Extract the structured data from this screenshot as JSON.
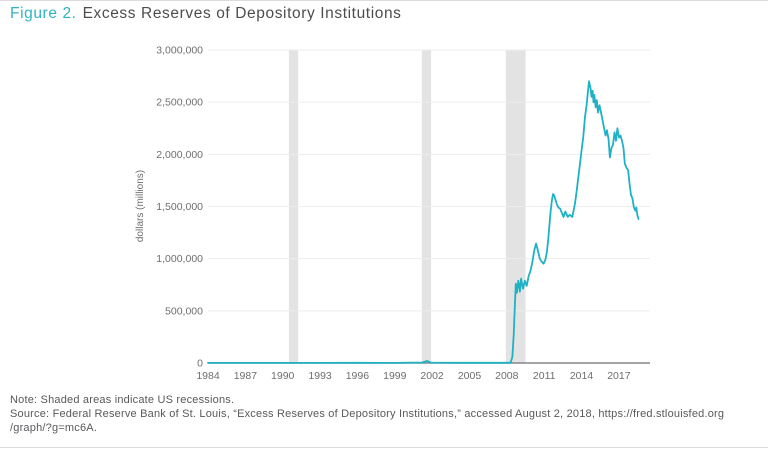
{
  "header": {
    "figure_label": "Figure 2.",
    "title": "Excess Reserves of Depository Institutions"
  },
  "notes": {
    "note": "Note: Shaded areas indicate US recessions.",
    "source_line1": "Source: Federal Reserve Bank of St. Louis, “Excess Reserves of Depository Institutions,” accessed August 2, 2018, https://fred.stlouisfed.org",
    "source_line2": "/graph/?g=mc6A."
  },
  "colors": {
    "accent_teal": "#2fb3c4",
    "line": "#1fb1c4",
    "title_text": "#4d4d4f",
    "tick_text": "#6d6e71",
    "note_text": "#58595b",
    "gridline": "#ededee",
    "recession_band": "#e3e3e4",
    "axis_line": "#85868a",
    "page_divider": "#dcdcdc"
  },
  "chart_data": {
    "type": "line",
    "title": "Excess Reserves of Depository Institutions",
    "xlabel": "",
    "ylabel": "dollars (millions)",
    "ylim": [
      0,
      3000000
    ],
    "xlim": [
      1984,
      2019.5
    ],
    "grid": "horizontal",
    "legend": "none",
    "line_color": "#1fb1c4",
    "grid_color": "#ededee",
    "band_color": "#e3e3e4",
    "axis_color": "#85868a",
    "yticks": [
      {
        "value": 0,
        "label": "0"
      },
      {
        "value": 500000,
        "label": "500,000"
      },
      {
        "value": 1000000,
        "label": "1,000,000"
      },
      {
        "value": 1500000,
        "label": "1,500,000"
      },
      {
        "value": 2000000,
        "label": "2,000,000"
      },
      {
        "value": 2500000,
        "label": "2,500,000"
      },
      {
        "value": 3000000,
        "label": "3,000,000"
      }
    ],
    "xticks": [
      {
        "year": 1984,
        "label": "1984"
      },
      {
        "year": 1987,
        "label": "1987"
      },
      {
        "year": 1990,
        "label": "1990"
      },
      {
        "year": 1993,
        "label": "1993"
      },
      {
        "year": 1996,
        "label": "1996"
      },
      {
        "year": 1999,
        "label": "1999"
      },
      {
        "year": 2002,
        "label": "2002"
      },
      {
        "year": 2005,
        "label": "2005"
      },
      {
        "year": 2008,
        "label": "2008"
      },
      {
        "year": 2011,
        "label": "2011"
      },
      {
        "year": 2014,
        "label": "2014"
      },
      {
        "year": 2017,
        "label": "2017"
      }
    ],
    "recession_bands": [
      [
        1990.5,
        1991.25
      ],
      [
        2001.17,
        2001.92
      ],
      [
        2007.92,
        2009.5
      ]
    ],
    "series": [
      {
        "name": "Excess Reserves",
        "points": [
          [
            1984.0,
            1000
          ],
          [
            1987.0,
            1200
          ],
          [
            1990.0,
            1100
          ],
          [
            1993.0,
            1000
          ],
          [
            1996.0,
            1500
          ],
          [
            1999.0,
            1200
          ],
          [
            2001.2,
            5000
          ],
          [
            2001.6,
            19000
          ],
          [
            2001.9,
            4000
          ],
          [
            2004.0,
            1800
          ],
          [
            2007.0,
            1700
          ],
          [
            2008.3,
            2000
          ],
          [
            2008.45,
            60000
          ],
          [
            2008.55,
            267000
          ],
          [
            2008.65,
            559000
          ],
          [
            2008.72,
            760000
          ],
          [
            2008.8,
            673000
          ],
          [
            2008.92,
            788000
          ],
          [
            2009.05,
            683000
          ],
          [
            2009.15,
            808000
          ],
          [
            2009.3,
            712000
          ],
          [
            2009.45,
            788000
          ],
          [
            2009.6,
            740000
          ],
          [
            2009.75,
            830000
          ],
          [
            2009.9,
            885000
          ],
          [
            2010.05,
            962000
          ],
          [
            2010.2,
            1077000
          ],
          [
            2010.35,
            1144000
          ],
          [
            2010.5,
            1077000
          ],
          [
            2010.65,
            1000000
          ],
          [
            2010.8,
            971000
          ],
          [
            2010.95,
            952000
          ],
          [
            2011.1,
            990000
          ],
          [
            2011.22,
            1067000
          ],
          [
            2011.32,
            1180000
          ],
          [
            2011.42,
            1320000
          ],
          [
            2011.52,
            1450000
          ],
          [
            2011.62,
            1560000
          ],
          [
            2011.72,
            1620000
          ],
          [
            2011.82,
            1600000
          ],
          [
            2011.92,
            1560000
          ],
          [
            2012.02,
            1520000
          ],
          [
            2012.14,
            1490000
          ],
          [
            2012.28,
            1480000
          ],
          [
            2012.42,
            1440000
          ],
          [
            2012.55,
            1400000
          ],
          [
            2012.7,
            1450000
          ],
          [
            2012.9,
            1400000
          ],
          [
            2013.05,
            1420000
          ],
          [
            2013.26,
            1400000
          ],
          [
            2013.48,
            1530000
          ],
          [
            2013.61,
            1650000
          ],
          [
            2013.74,
            1780000
          ],
          [
            2013.88,
            1910000
          ],
          [
            2014.01,
            2040000
          ],
          [
            2014.14,
            2170000
          ],
          [
            2014.28,
            2360000
          ],
          [
            2014.41,
            2470000
          ],
          [
            2014.49,
            2570000
          ],
          [
            2014.6,
            2700000
          ],
          [
            2014.73,
            2630000
          ],
          [
            2014.8,
            2550000
          ],
          [
            2014.89,
            2610000
          ],
          [
            2014.96,
            2500000
          ],
          [
            2015.03,
            2570000
          ],
          [
            2015.14,
            2450000
          ],
          [
            2015.23,
            2520000
          ],
          [
            2015.32,
            2400000
          ],
          [
            2015.44,
            2470000
          ],
          [
            2015.64,
            2360000
          ],
          [
            2015.8,
            2260000
          ],
          [
            2015.93,
            2180000
          ],
          [
            2016.04,
            2230000
          ],
          [
            2016.17,
            2150000
          ],
          [
            2016.28,
            1970000
          ],
          [
            2016.4,
            2060000
          ],
          [
            2016.53,
            2090000
          ],
          [
            2016.65,
            2210000
          ],
          [
            2016.77,
            2130000
          ],
          [
            2016.88,
            2250000
          ],
          [
            2017.01,
            2160000
          ],
          [
            2017.13,
            2180000
          ],
          [
            2017.25,
            2130000
          ],
          [
            2017.37,
            2060000
          ],
          [
            2017.48,
            1910000
          ],
          [
            2017.61,
            1870000
          ],
          [
            2017.74,
            1850000
          ],
          [
            2017.85,
            1720000
          ],
          [
            2017.97,
            1610000
          ],
          [
            2018.09,
            1580000
          ],
          [
            2018.21,
            1490000
          ],
          [
            2018.33,
            1460000
          ],
          [
            2018.4,
            1490000
          ],
          [
            2018.5,
            1410000
          ],
          [
            2018.58,
            1380000
          ]
        ]
      }
    ]
  }
}
